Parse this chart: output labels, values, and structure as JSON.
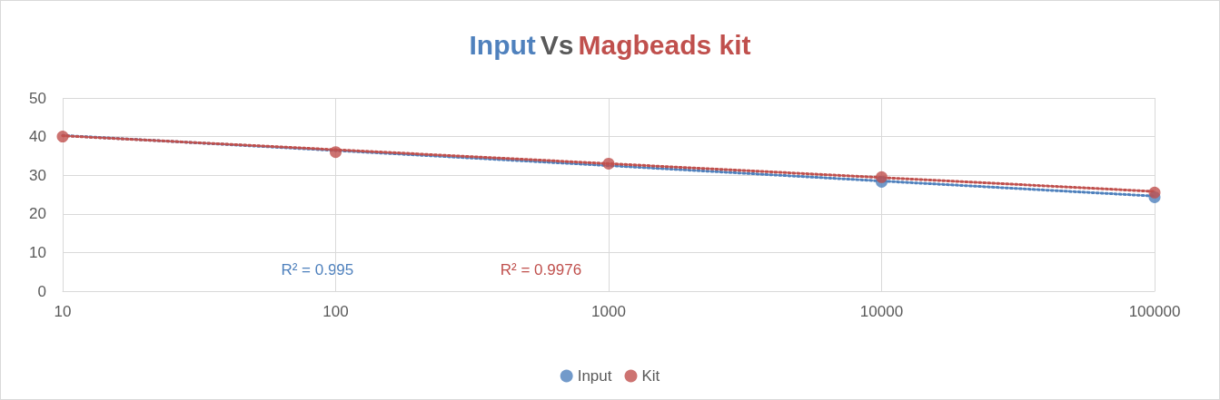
{
  "chart_data": {
    "type": "scatter",
    "title": "Input Vs Magbeads kit",
    "x": [
      10,
      100,
      1000,
      10000,
      100000
    ],
    "series": [
      {
        "name": "Input",
        "color": "#4f81bd",
        "values": [
          null,
          null,
          null,
          28.3,
          24.3
        ]
      },
      {
        "name": "Kit",
        "color": "#c0504d",
        "values": [
          40,
          36,
          33,
          29.5,
          25.5
        ]
      },
      {
        "type": "line",
        "color": "#4f81bd",
        "values": [
          40.3,
          36.4,
          32.5,
          28.5,
          24.6
        ],
        "line_style": "dotted",
        "marker": "none"
      },
      {
        "type": "line",
        "color": "#c0504d",
        "values": [
          40.2,
          36.6,
          33.0,
          29.4,
          25.8
        ],
        "line_style": "dotted",
        "marker": "none"
      }
    ],
    "annotations": [
      "R² = 0.995",
      "R² = 0.9976"
    ],
    "log": "x",
    "xlim": [
      10,
      100000
    ],
    "xticks": [
      10,
      100,
      1000,
      10000,
      100000
    ],
    "ylim": [
      0,
      50
    ],
    "yticks": [
      0,
      10,
      20,
      30,
      40,
      50
    ],
    "grid": true,
    "legend": "bottom",
    "marker": "circle"
  }
}
